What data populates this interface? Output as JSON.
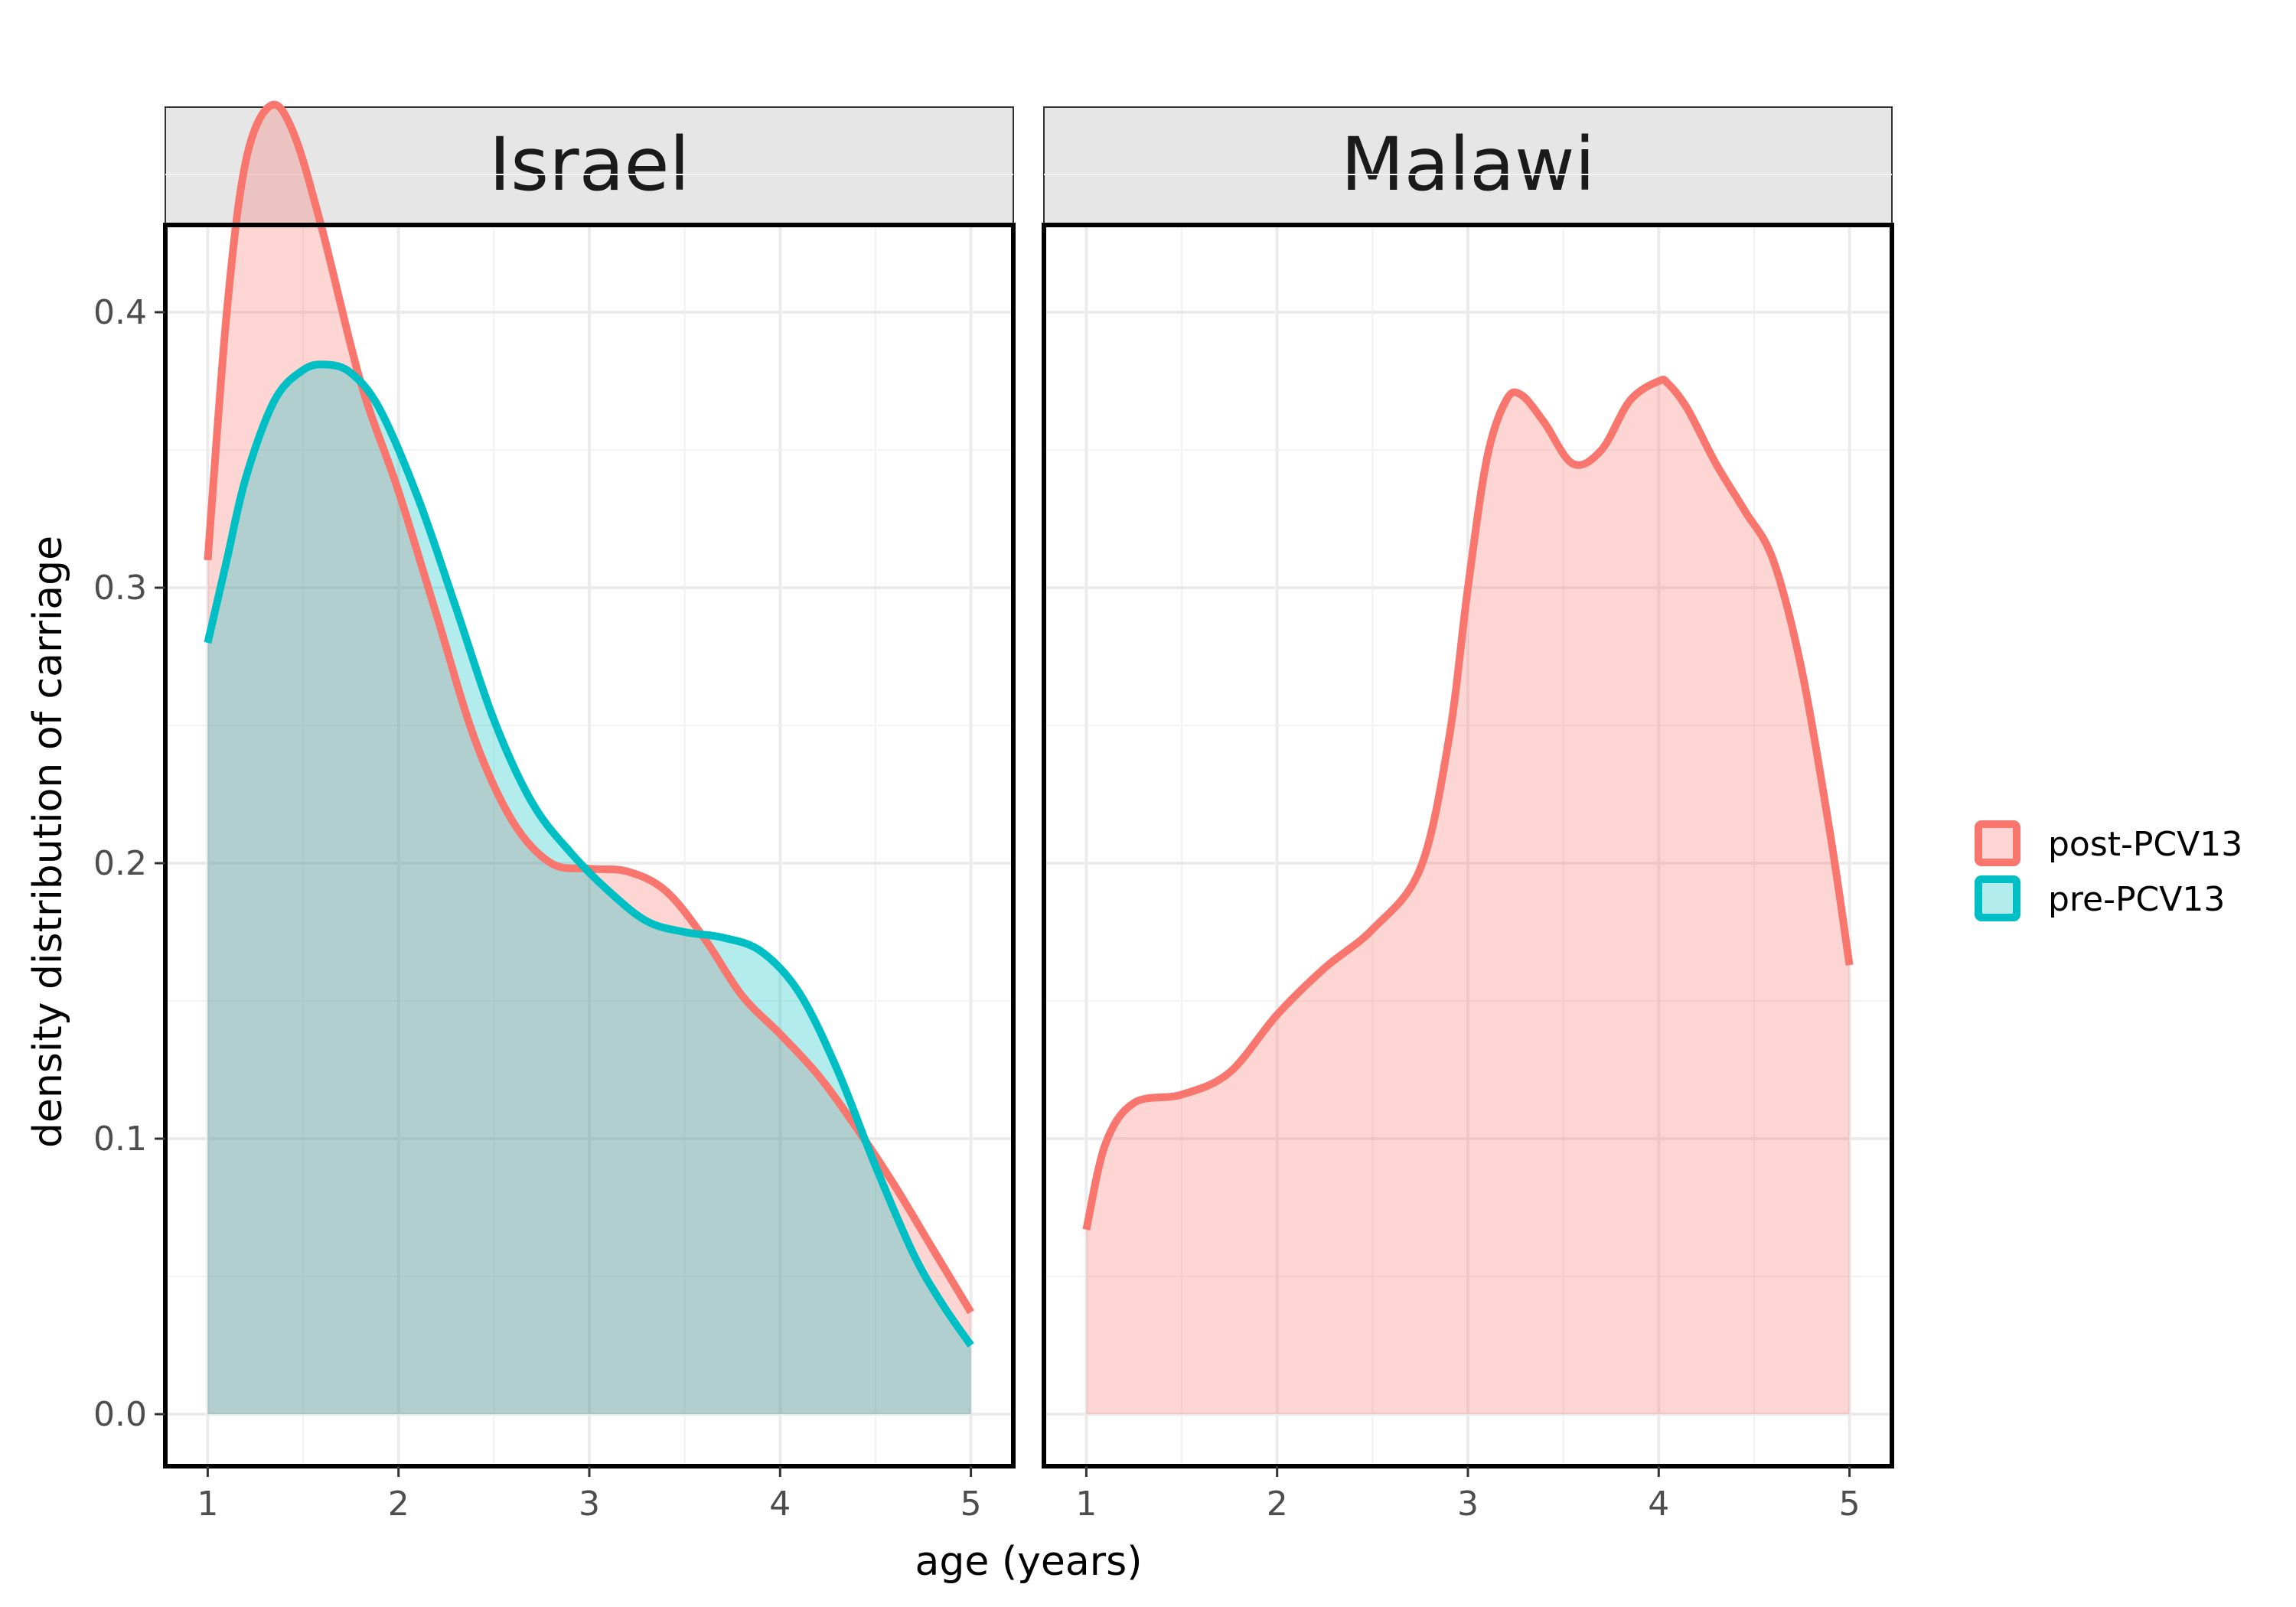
{
  "chart_data": {
    "type": "area",
    "xlabel": "age (years)",
    "ylabel": "density distribution of carriage",
    "xlim": [
      1,
      5
    ],
    "ylim": [
      0,
      0.48
    ],
    "x_ticks": [
      1,
      2,
      3,
      4,
      5
    ],
    "y_ticks": [
      0.0,
      0.1,
      0.2,
      0.3,
      0.4
    ],
    "y_tick_labels": [
      "0.0",
      "0.1",
      "0.2",
      "0.3",
      "0.4"
    ],
    "grid": true,
    "legend_position": "right",
    "legend": [
      {
        "label": "post-PCV13",
        "color": "#F8766D"
      },
      {
        "label": "pre-PCV13",
        "color": "#00BFC4"
      }
    ],
    "panels": [
      {
        "title": "Israel",
        "series": [
          {
            "name": "post-PCV13",
            "color": "#F8766D",
            "x": [
              1.0,
              1.1,
              1.2,
              1.33,
              1.45,
              1.6,
              1.8,
              2.0,
              2.2,
              2.4,
              2.6,
              2.8,
              3.0,
              3.2,
              3.4,
              3.6,
              3.8,
              4.0,
              4.2,
              4.4,
              4.6,
              4.8,
              5.0
            ],
            "y": [
              0.31,
              0.4,
              0.455,
              0.475,
              0.465,
              0.43,
              0.375,
              0.335,
              0.29,
              0.245,
              0.215,
              0.2,
              0.198,
              0.197,
              0.19,
              0.173,
              0.152,
              0.138,
              0.123,
              0.104,
              0.083,
              0.06,
              0.037
            ]
          },
          {
            "name": "pre-PCV13",
            "color": "#00BFC4",
            "x": [
              1.0,
              1.1,
              1.2,
              1.35,
              1.5,
              1.62,
              1.75,
              1.9,
              2.1,
              2.3,
              2.5,
              2.7,
              2.9,
              3.1,
              3.3,
              3.5,
              3.7,
              3.9,
              4.1,
              4.3,
              4.5,
              4.7,
              4.85,
              5.0
            ],
            "y": [
              0.28,
              0.31,
              0.34,
              0.368,
              0.379,
              0.381,
              0.378,
              0.365,
              0.333,
              0.293,
              0.252,
              0.222,
              0.204,
              0.19,
              0.179,
              0.175,
              0.173,
              0.168,
              0.153,
              0.125,
              0.09,
              0.058,
              0.04,
              0.025
            ]
          }
        ]
      },
      {
        "title": "Malawi",
        "series": [
          {
            "name": "post-PCV13",
            "color": "#F8766D",
            "x": [
              1.0,
              1.1,
              1.25,
              1.5,
              1.75,
              2.0,
              2.25,
              2.5,
              2.75,
              2.9,
              3.0,
              3.1,
              3.2,
              3.28,
              3.4,
              3.55,
              3.7,
              3.85,
              4.0,
              4.05,
              4.15,
              4.3,
              4.45,
              4.6,
              4.75,
              4.9,
              5.0
            ],
            "y": [
              0.067,
              0.098,
              0.113,
              0.116,
              0.124,
              0.145,
              0.162,
              0.176,
              0.198,
              0.245,
              0.3,
              0.347,
              0.368,
              0.37,
              0.36,
              0.345,
              0.35,
              0.368,
              0.375,
              0.374,
              0.365,
              0.345,
              0.328,
              0.31,
              0.27,
              0.21,
              0.163
            ]
          }
        ]
      }
    ]
  }
}
